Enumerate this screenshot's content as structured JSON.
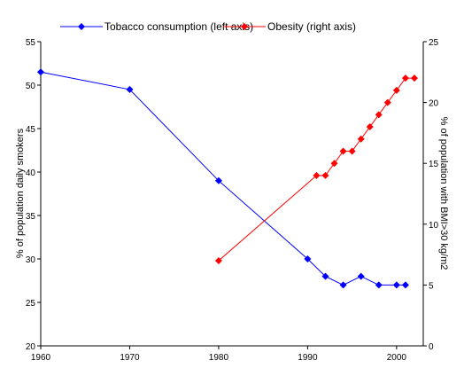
{
  "chart_data": {
    "type": "line",
    "x_axis": {
      "range": [
        1960,
        2003
      ],
      "ticks": [
        1960,
        1970,
        1980,
        1990,
        2000
      ]
    },
    "y_left": {
      "label": "% of population daily smokers",
      "range": [
        20,
        55
      ],
      "ticks": [
        20,
        25,
        30,
        35,
        40,
        45,
        50,
        55
      ]
    },
    "y_right": {
      "label": "% of population with BMI>30 kg/m2",
      "range": [
        0,
        25
      ],
      "ticks": [
        0,
        5,
        10,
        15,
        20,
        25
      ]
    },
    "grid": false,
    "legend_position": "top",
    "series": [
      {
        "name": "Tobacco consumption (left axis)",
        "axis": "left",
        "color": "#0000FF",
        "marker": "diamond",
        "x": [
          1960,
          1970,
          1980,
          1990,
          1992,
          1994,
          1996,
          1998,
          2000,
          2001
        ],
        "y": [
          51.5,
          49.5,
          39,
          30,
          28,
          27,
          28,
          27,
          27,
          27
        ]
      },
      {
        "name": "Obesity (right axis)",
        "axis": "right",
        "color": "#FF0000",
        "marker": "diamond",
        "x": [
          1980,
          1991,
          1992,
          1993,
          1994,
          1995,
          1996,
          1997,
          1998,
          1999,
          2000,
          2001,
          2002
        ],
        "y": [
          7,
          14,
          14,
          15,
          16,
          16,
          17,
          18,
          19,
          20,
          21,
          22,
          22
        ]
      }
    ]
  }
}
